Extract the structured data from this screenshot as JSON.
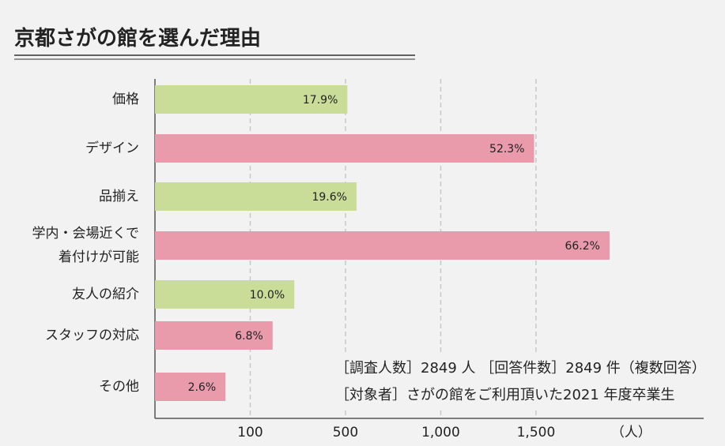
{
  "chart_data": {
    "type": "hbar",
    "title": "京都さがの館を選んだ理由",
    "categories": [
      "価格",
      "デザイン",
      "品揃え",
      "学内・会場近くで\n着付けが可能",
      "友人の紹介",
      "スタッフの対応",
      "その他"
    ],
    "values": [
      510,
      1490,
      558,
      1886,
      285,
      194,
      74
    ],
    "value_labels": [
      "17.9%",
      "52.3%",
      "19.6%",
      "66.2%",
      "10.0%",
      "6.8%",
      "2.6%"
    ],
    "colors": [
      "#c9dc98",
      "#e99aab",
      "#c9dc98",
      "#e99aab",
      "#c9dc98",
      "#e99aab",
      "#e99aab"
    ],
    "xlim": [
      0,
      2380
    ],
    "xticks": [
      100,
      500,
      {
        "value": 1000,
        "label": "1,000"
      },
      {
        "value": 1500,
        "label": "1,500"
      }
    ],
    "x_unit": "（人）",
    "grid": true,
    "annotations": [
      "［調査人数］2849 人 ［回答件数］2849 件（複数回答）",
      "［対象者］さがの館をご利用頂いた2021 年度卒業生"
    ]
  }
}
